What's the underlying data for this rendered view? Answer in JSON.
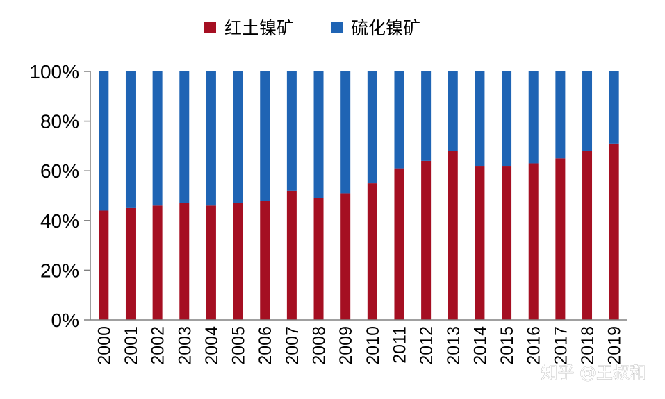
{
  "chart_data": {
    "type": "bar",
    "stacked": true,
    "percent": true,
    "categories": [
      "2000",
      "2001",
      "2002",
      "2003",
      "2004",
      "2005",
      "2006",
      "2007",
      "2008",
      "2009",
      "2010",
      "2011",
      "2012",
      "2013",
      "2014",
      "2015",
      "2016",
      "2017",
      "2018",
      "2019"
    ],
    "series": [
      {
        "name": "红土镍矿",
        "color": "#a50f22",
        "values": [
          44,
          45,
          46,
          47,
          46,
          47,
          48,
          52,
          49,
          51,
          55,
          61,
          64,
          68,
          62,
          62,
          63,
          65,
          68,
          71
        ]
      },
      {
        "name": "硫化镍矿",
        "color": "#1f64b4",
        "values": [
          56,
          55,
          54,
          53,
          54,
          53,
          52,
          48,
          51,
          49,
          45,
          39,
          36,
          32,
          38,
          38,
          37,
          35,
          32,
          29
        ]
      }
    ],
    "ylim": [
      0,
      100
    ],
    "yticks": [
      "0%",
      "20%",
      "40%",
      "60%",
      "80%",
      "100%"
    ],
    "legend_position": "top-center",
    "grid": false
  },
  "watermark": {
    "text": "知乎 @王叔和"
  }
}
